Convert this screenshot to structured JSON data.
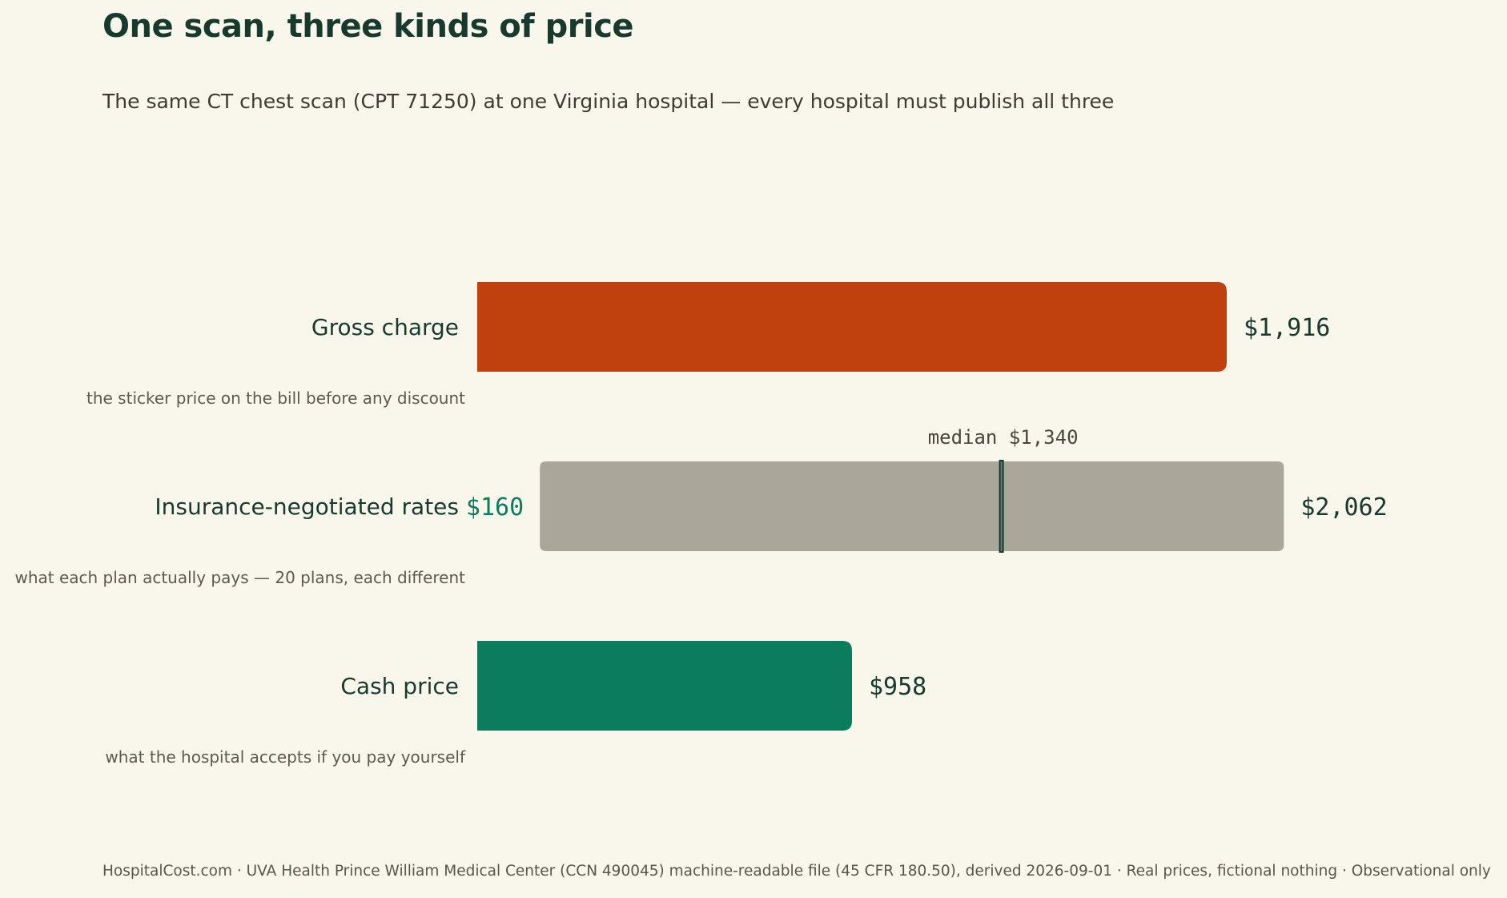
{
  "header": {
    "title": "One scan, three kinds of price",
    "subtitle": "The same CT chest scan (CPT 71250) at one Virginia hospital — every hospital must publish all three"
  },
  "footer": {
    "text": "HospitalCost.com · UVA Health Prince William Medical Center (CCN 490045) machine-readable file (45 CFR 180.50), derived 2026-09-01 · Real prices, fictional nothing · Observational only"
  },
  "colors": {
    "gross": "#c1410e",
    "range": "#aaa69a",
    "cash": "#0b7c5d",
    "median_marker": "#183a2e",
    "min_label": "#0b7c5d",
    "text": "#183a2e"
  },
  "chart_data": {
    "type": "bar",
    "orientation": "horizontal",
    "xlim": [
      0,
      2100
    ],
    "bars": [
      {
        "id": "gross",
        "label": "Gross charge",
        "sublabel": "the sticker price on the bill before any discount",
        "value": 1916,
        "value_label": "$1,916"
      },
      {
        "id": "negotiated",
        "label": "Insurance-negotiated rates",
        "sublabel": "what each plan actually pays — 20 plans, each different",
        "min": 160,
        "max": 2062,
        "median": 1340,
        "min_label": "$160",
        "max_label": "$2,062",
        "median_label": "median $1,340"
      },
      {
        "id": "cash",
        "label": "Cash price",
        "sublabel": "what the hospital accepts if you pay yourself",
        "value": 958,
        "value_label": "$958"
      }
    ]
  }
}
